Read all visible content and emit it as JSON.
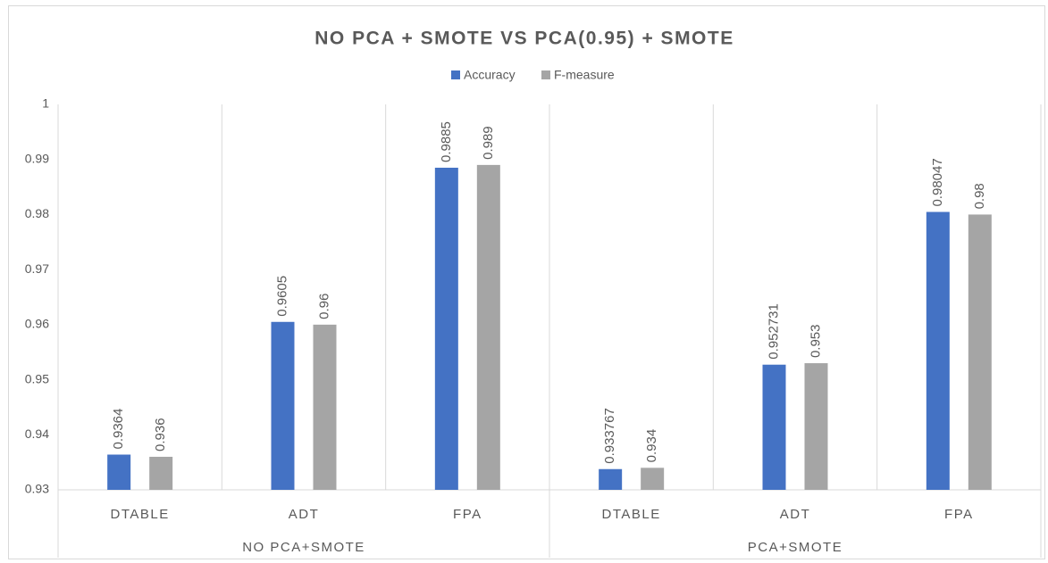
{
  "chart_data": {
    "type": "bar",
    "title": "NO PCA + SMOTE VS PCA(0.95) + SMOTE",
    "groups": [
      {
        "name": "NO PCA+SMOTE",
        "categories": [
          "DTABLE",
          "ADT",
          "FPA"
        ]
      },
      {
        "name": "PCA+SMOTE",
        "categories": [
          "DTABLE",
          "ADT",
          "FPA"
        ]
      }
    ],
    "series": [
      {
        "name": "Accuracy",
        "color": "#4472c4",
        "values": [
          0.9364,
          0.9605,
          0.9885,
          0.933767,
          0.952731,
          0.98047
        ]
      },
      {
        "name": "F-measure",
        "color": "#a5a5a5",
        "values": [
          0.936,
          0.96,
          0.989,
          0.934,
          0.953,
          0.98
        ]
      }
    ],
    "ylim": [
      0.93,
      1
    ],
    "yticks": [
      0.93,
      0.94,
      0.95,
      0.96,
      0.97,
      0.98,
      0.99,
      1
    ],
    "legend": "top"
  }
}
